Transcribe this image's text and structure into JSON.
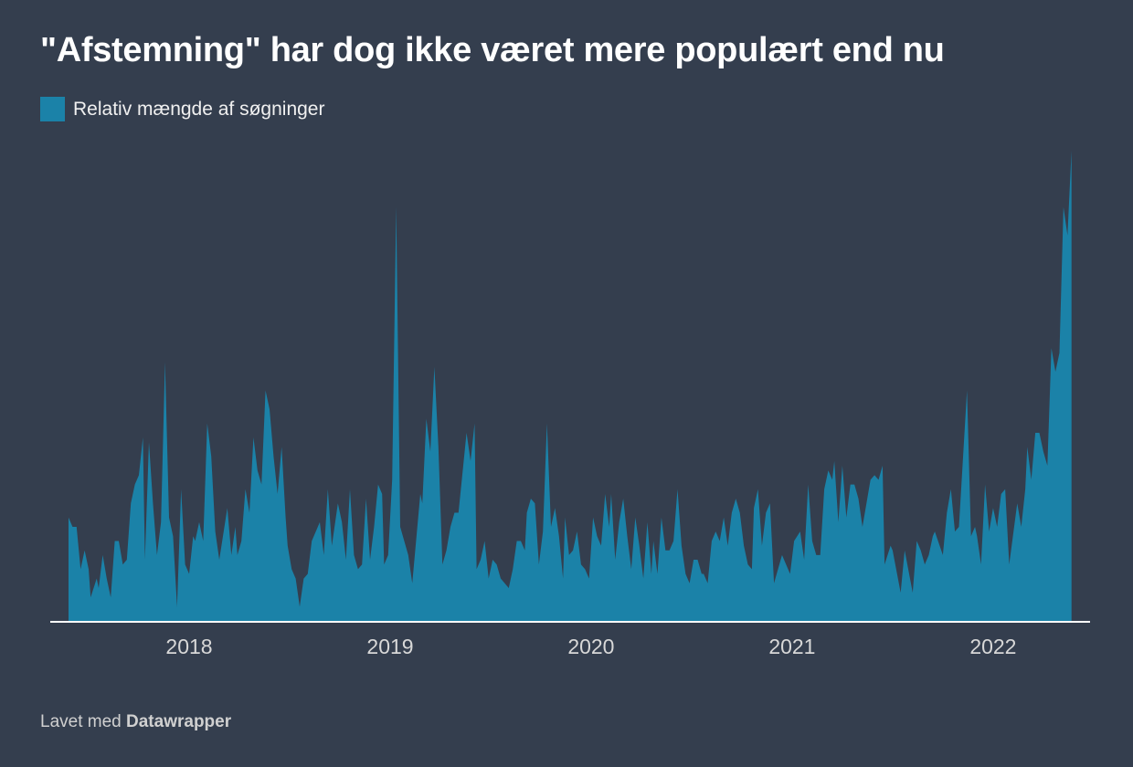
{
  "chart_data": {
    "type": "area",
    "title": "\"Afstemning\" har dog ikke været mere populært end nu",
    "legend": [
      {
        "label": "Relativ mængde af søgninger",
        "color": "#1b82a8"
      }
    ],
    "legend_position": "top-left",
    "xlabel": "",
    "ylabel": "",
    "xlim": [
      2017.4,
      2022.39
    ],
    "ylim": [
      0,
      100
    ],
    "grid": false,
    "x_ticks": [
      {
        "value": 2018,
        "label": "2018"
      },
      {
        "value": 2019,
        "label": "2019"
      },
      {
        "value": 2020,
        "label": "2020"
      },
      {
        "value": 2021,
        "label": "2021"
      },
      {
        "value": 2022,
        "label": "2022"
      }
    ],
    "series": [
      {
        "name": "Relativ mængde af søgninger",
        "color": "#1b82a8",
        "points": [
          [
            2017.4,
            22
          ],
          [
            2017.42,
            20
          ],
          [
            2017.44,
            20
          ],
          [
            2017.46,
            11
          ],
          [
            2017.48,
            15
          ],
          [
            2017.5,
            11
          ],
          [
            2017.51,
            5
          ],
          [
            2017.54,
            9
          ],
          [
            2017.55,
            7
          ],
          [
            2017.57,
            14
          ],
          [
            2017.59,
            9
          ],
          [
            2017.61,
            5
          ],
          [
            2017.63,
            17
          ],
          [
            2017.65,
            17
          ],
          [
            2017.67,
            12
          ],
          [
            2017.69,
            13
          ],
          [
            2017.71,
            25
          ],
          [
            2017.73,
            29
          ],
          [
            2017.75,
            31
          ],
          [
            2017.77,
            39
          ],
          [
            2017.78,
            13
          ],
          [
            2017.8,
            38
          ],
          [
            2017.82,
            25
          ],
          [
            2017.84,
            14
          ],
          [
            2017.86,
            21
          ],
          [
            2017.88,
            55
          ],
          [
            2017.9,
            22
          ],
          [
            2017.92,
            18
          ],
          [
            2017.94,
            3
          ],
          [
            2017.96,
            28
          ],
          [
            2017.98,
            12
          ],
          [
            2018.0,
            10
          ],
          [
            2018.02,
            18
          ],
          [
            2018.03,
            17
          ],
          [
            2018.05,
            21
          ],
          [
            2018.07,
            17
          ],
          [
            2018.09,
            42
          ],
          [
            2018.11,
            35
          ],
          [
            2018.13,
            19
          ],
          [
            2018.15,
            13
          ],
          [
            2018.19,
            24
          ],
          [
            2018.21,
            14
          ],
          [
            2018.23,
            20
          ],
          [
            2018.24,
            14
          ],
          [
            2018.26,
            17
          ],
          [
            2018.28,
            28
          ],
          [
            2018.3,
            23
          ],
          [
            2018.32,
            39
          ],
          [
            2018.34,
            32
          ],
          [
            2018.36,
            29
          ],
          [
            2018.38,
            49
          ],
          [
            2018.4,
            45
          ],
          [
            2018.42,
            35
          ],
          [
            2018.44,
            27
          ],
          [
            2018.46,
            37
          ],
          [
            2018.48,
            22
          ],
          [
            2018.49,
            16
          ],
          [
            2018.51,
            11
          ],
          [
            2018.53,
            9
          ],
          [
            2018.55,
            3
          ],
          [
            2018.57,
            9
          ],
          [
            2018.59,
            10
          ],
          [
            2018.61,
            17
          ],
          [
            2018.65,
            21
          ],
          [
            2018.67,
            14
          ],
          [
            2018.69,
            28
          ],
          [
            2018.71,
            16
          ],
          [
            2018.74,
            25
          ],
          [
            2018.76,
            21
          ],
          [
            2018.78,
            13
          ],
          [
            2018.8,
            28
          ],
          [
            2018.82,
            14
          ],
          [
            2018.84,
            11
          ],
          [
            2018.86,
            12
          ],
          [
            2018.88,
            26
          ],
          [
            2018.9,
            13
          ],
          [
            2018.92,
            20
          ],
          [
            2018.94,
            29
          ],
          [
            2018.96,
            27
          ],
          [
            2018.97,
            12
          ],
          [
            2018.99,
            14
          ],
          [
            2019.01,
            30
          ],
          [
            2019.03,
            88
          ],
          [
            2019.05,
            20
          ],
          [
            2019.09,
            14
          ],
          [
            2019.11,
            8
          ],
          [
            2019.15,
            27
          ],
          [
            2019.16,
            25
          ],
          [
            2019.18,
            43
          ],
          [
            2019.2,
            36
          ],
          [
            2019.22,
            54
          ],
          [
            2019.24,
            37
          ],
          [
            2019.26,
            12
          ],
          [
            2019.28,
            15
          ],
          [
            2019.3,
            20
          ],
          [
            2019.32,
            23
          ],
          [
            2019.34,
            23
          ],
          [
            2019.38,
            40
          ],
          [
            2019.4,
            34
          ],
          [
            2019.42,
            42
          ],
          [
            2019.43,
            11
          ],
          [
            2019.45,
            13
          ],
          [
            2019.47,
            17
          ],
          [
            2019.49,
            9
          ],
          [
            2019.51,
            13
          ],
          [
            2019.53,
            12
          ],
          [
            2019.55,
            9
          ],
          [
            2019.59,
            7
          ],
          [
            2019.61,
            11
          ],
          [
            2019.63,
            17
          ],
          [
            2019.65,
            17
          ],
          [
            2019.67,
            15
          ],
          [
            2019.68,
            23
          ],
          [
            2019.7,
            26
          ],
          [
            2019.72,
            25
          ],
          [
            2019.74,
            12
          ],
          [
            2019.76,
            19
          ],
          [
            2019.78,
            42
          ],
          [
            2019.8,
            20
          ],
          [
            2019.82,
            24
          ],
          [
            2019.84,
            18
          ],
          [
            2019.86,
            9
          ],
          [
            2019.87,
            22
          ],
          [
            2019.89,
            14
          ],
          [
            2019.91,
            15
          ],
          [
            2019.93,
            19
          ],
          [
            2019.95,
            12
          ],
          [
            2019.97,
            11
          ],
          [
            2019.99,
            9
          ],
          [
            2020.01,
            22
          ],
          [
            2020.03,
            18
          ],
          [
            2020.05,
            16
          ],
          [
            2020.07,
            27
          ],
          [
            2020.09,
            20
          ],
          [
            2020.1,
            27
          ],
          [
            2020.12,
            13
          ],
          [
            2020.14,
            21
          ],
          [
            2020.16,
            26
          ],
          [
            2020.18,
            18
          ],
          [
            2020.2,
            11
          ],
          [
            2020.22,
            22
          ],
          [
            2020.24,
            16
          ],
          [
            2020.26,
            9
          ],
          [
            2020.28,
            21
          ],
          [
            2020.3,
            10
          ],
          [
            2020.31,
            17
          ],
          [
            2020.33,
            10
          ],
          [
            2020.35,
            22
          ],
          [
            2020.37,
            15
          ],
          [
            2020.39,
            15
          ],
          [
            2020.41,
            17
          ],
          [
            2020.43,
            28
          ],
          [
            2020.45,
            16
          ],
          [
            2020.47,
            10
          ],
          [
            2020.49,
            8
          ],
          [
            2020.51,
            13
          ],
          [
            2020.53,
            13
          ],
          [
            2020.55,
            10
          ],
          [
            2020.56,
            10
          ],
          [
            2020.58,
            8
          ],
          [
            2020.6,
            17
          ],
          [
            2020.62,
            19
          ],
          [
            2020.64,
            17
          ],
          [
            2020.66,
            22
          ],
          [
            2020.68,
            16
          ],
          [
            2020.7,
            23
          ],
          [
            2020.72,
            26
          ],
          [
            2020.74,
            23
          ],
          [
            2020.76,
            16
          ],
          [
            2020.78,
            12
          ],
          [
            2020.8,
            11
          ],
          [
            2020.81,
            24
          ],
          [
            2020.83,
            28
          ],
          [
            2020.85,
            16
          ],
          [
            2020.87,
            23
          ],
          [
            2020.89,
            25
          ],
          [
            2020.91,
            8
          ],
          [
            2020.95,
            14
          ],
          [
            2020.99,
            10
          ],
          [
            2021.01,
            17
          ],
          [
            2021.04,
            19
          ],
          [
            2021.06,
            13
          ],
          [
            2021.08,
            29
          ],
          [
            2021.1,
            17
          ],
          [
            2021.12,
            14
          ],
          [
            2021.14,
            14
          ],
          [
            2021.16,
            28
          ],
          [
            2021.18,
            32
          ],
          [
            2021.2,
            30
          ],
          [
            2021.21,
            34
          ],
          [
            2021.23,
            21
          ],
          [
            2021.25,
            33
          ],
          [
            2021.27,
            22
          ],
          [
            2021.29,
            29
          ],
          [
            2021.31,
            29
          ],
          [
            2021.33,
            26
          ],
          [
            2021.35,
            20
          ],
          [
            2021.37,
            25
          ],
          [
            2021.39,
            30
          ],
          [
            2021.41,
            31
          ],
          [
            2021.43,
            30
          ],
          [
            2021.45,
            33
          ],
          [
            2021.46,
            12
          ],
          [
            2021.49,
            16
          ],
          [
            2021.5,
            15
          ],
          [
            2021.54,
            6
          ],
          [
            2021.56,
            15
          ],
          [
            2021.6,
            6
          ],
          [
            2021.62,
            17
          ],
          [
            2021.64,
            15
          ],
          [
            2021.66,
            12
          ],
          [
            2021.68,
            14
          ],
          [
            2021.7,
            18
          ],
          [
            2021.71,
            19
          ],
          [
            2021.75,
            14
          ],
          [
            2021.77,
            23
          ],
          [
            2021.79,
            28
          ],
          [
            2021.81,
            19
          ],
          [
            2021.83,
            20
          ],
          [
            2021.87,
            49
          ],
          [
            2021.89,
            18
          ],
          [
            2021.91,
            20
          ],
          [
            2021.92,
            18
          ],
          [
            2021.94,
            12
          ],
          [
            2021.96,
            29
          ],
          [
            2021.98,
            19
          ],
          [
            2022.0,
            24
          ],
          [
            2022.02,
            20
          ],
          [
            2022.04,
            27
          ],
          [
            2022.06,
            28
          ],
          [
            2022.08,
            12
          ],
          [
            2022.12,
            25
          ],
          [
            2022.14,
            20
          ],
          [
            2022.16,
            28
          ],
          [
            2022.17,
            37
          ],
          [
            2022.19,
            30
          ],
          [
            2022.21,
            40
          ],
          [
            2022.23,
            40
          ],
          [
            2022.25,
            36
          ],
          [
            2022.27,
            33
          ],
          [
            2022.29,
            58
          ],
          [
            2022.31,
            53
          ],
          [
            2022.33,
            57
          ],
          [
            2022.35,
            88
          ],
          [
            2022.37,
            82
          ],
          [
            2022.39,
            100
          ]
        ]
      }
    ]
  },
  "footer": {
    "prefix": "Lavet med",
    "brand": "Datawrapper"
  }
}
